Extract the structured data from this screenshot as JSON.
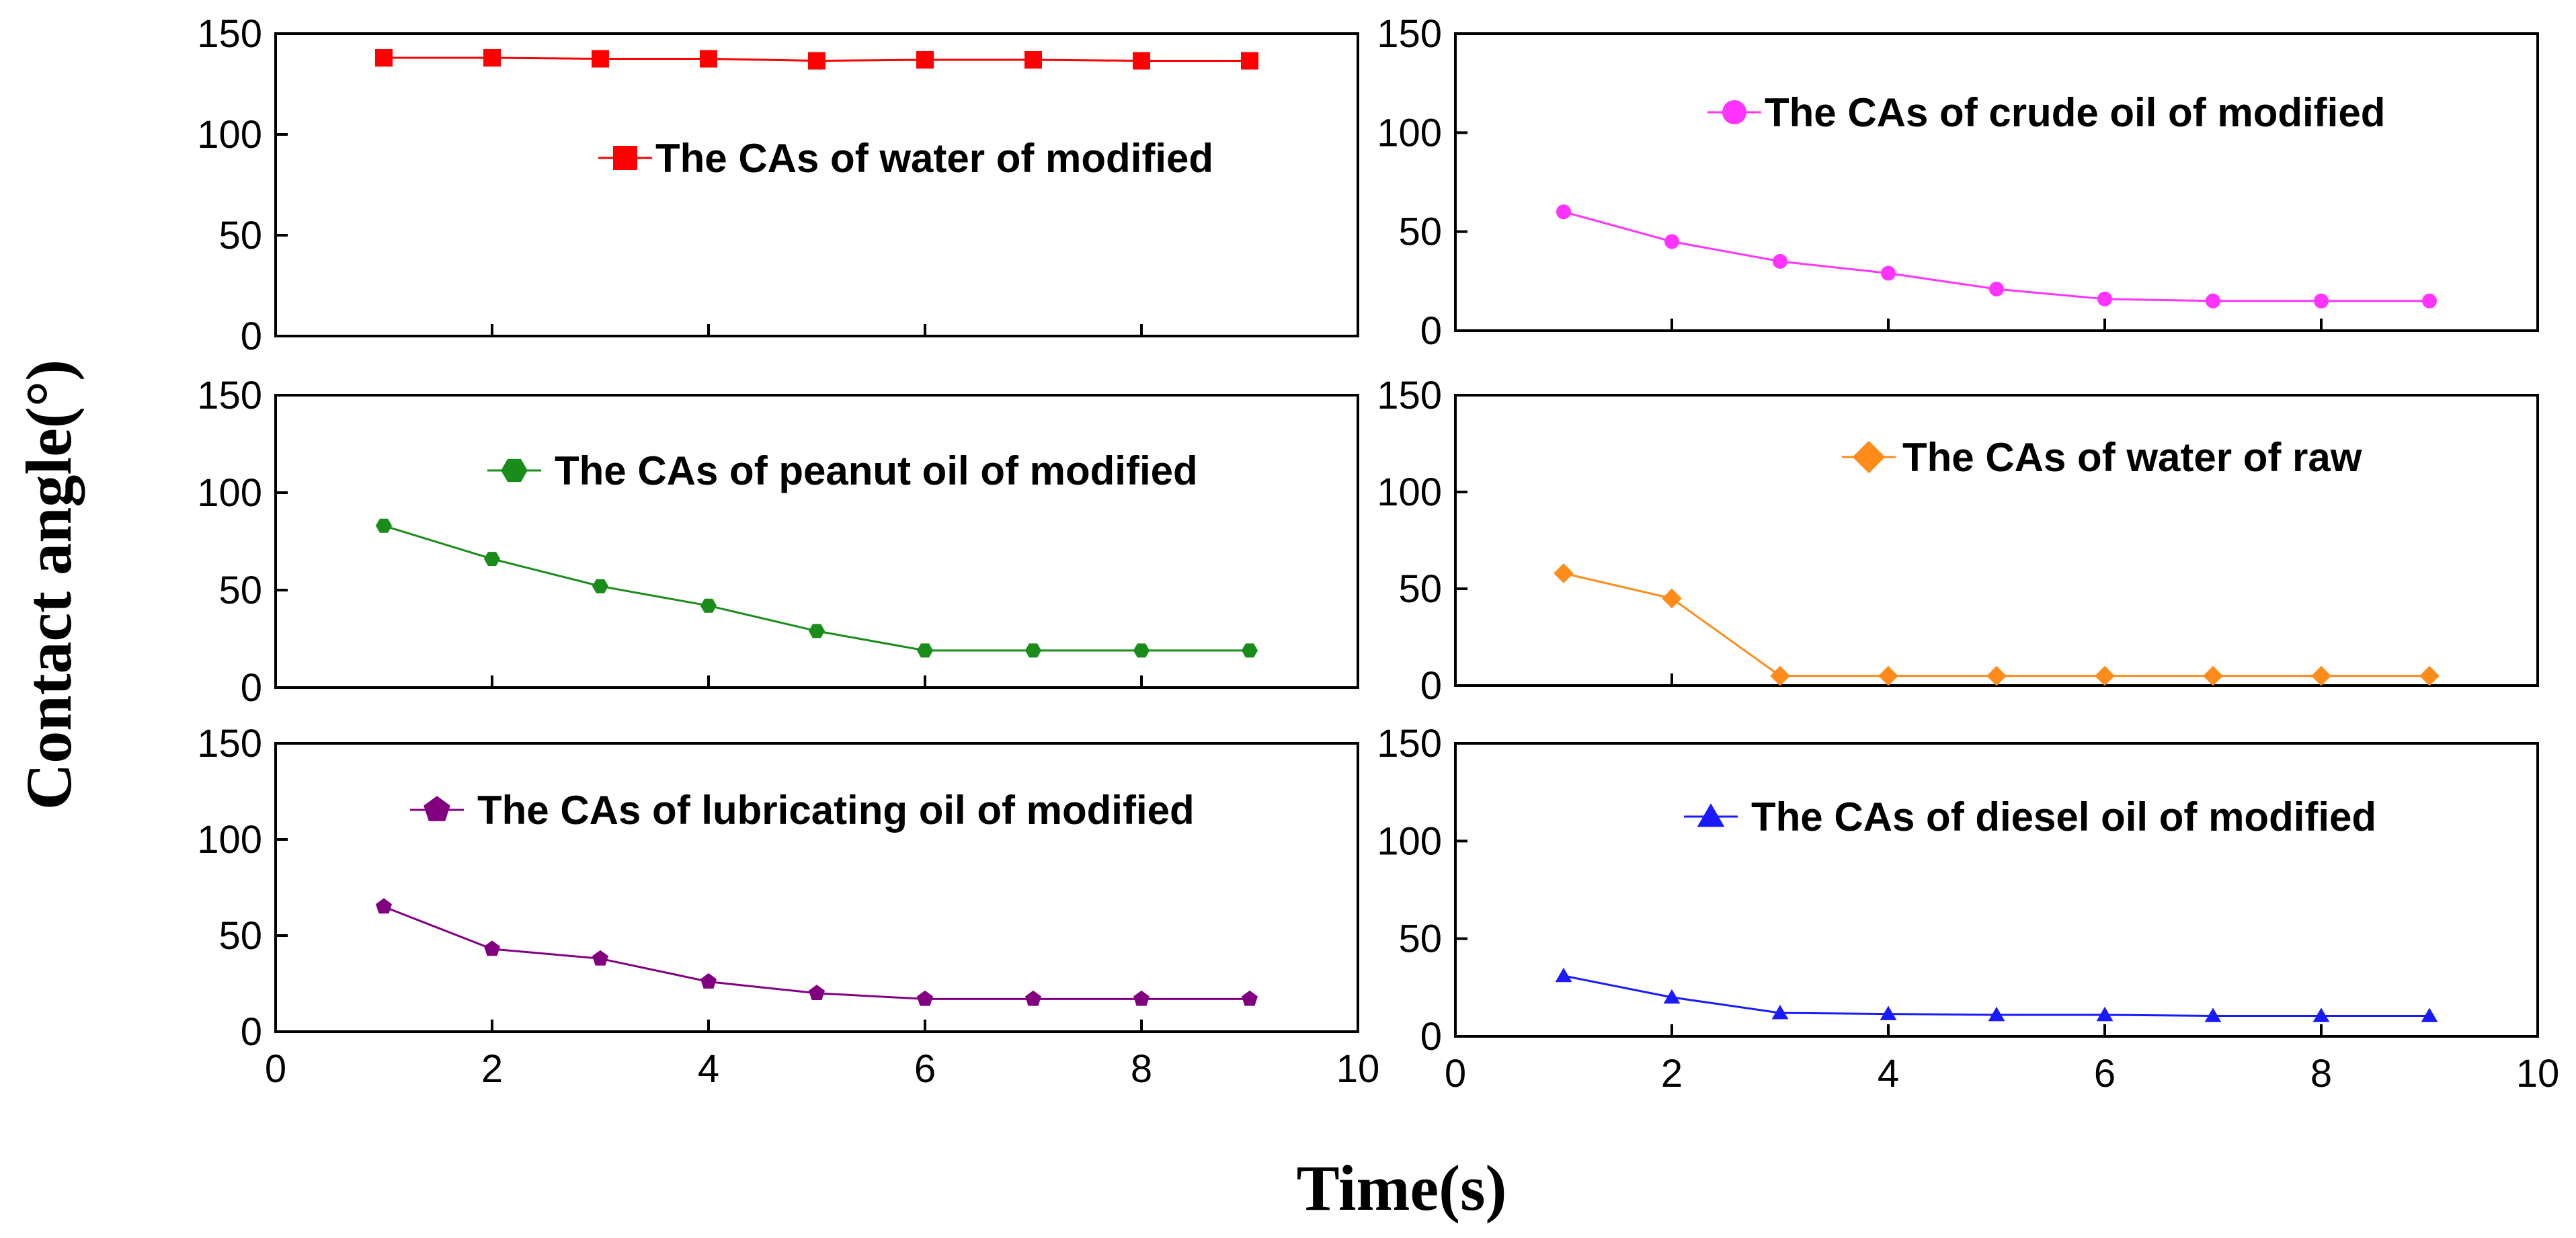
{
  "figure": {
    "ylabel": "Contact angle(°)",
    "xlabel": "Time(s)"
  },
  "chart_data": [
    {
      "type": "line",
      "legend": "The CAs of water of modified",
      "legend_position": "top-right",
      "color": "#ff0000",
      "marker": "square",
      "x": [
        1,
        2,
        3,
        4,
        5,
        6,
        7,
        8,
        9
      ],
      "y": [
        138,
        138,
        137.5,
        137.5,
        136.5,
        137,
        137,
        136.5,
        136.5
      ],
      "xlim": [
        0,
        10
      ],
      "ylim": [
        0,
        150
      ],
      "yticks": [
        "0",
        "50",
        "100",
        "150"
      ],
      "xticks": [
        "0",
        "2",
        "4",
        "6",
        "8",
        "10"
      ],
      "show_xticks": false
    },
    {
      "type": "line",
      "legend": "The CAs of crude oil of modified",
      "legend_position": "top-right",
      "color": "#ff33ff",
      "marker": "circle",
      "x": [
        1,
        2,
        3,
        4,
        5,
        6,
        7,
        8,
        9
      ],
      "y": [
        60,
        45,
        35,
        29,
        21,
        16,
        15,
        15,
        15
      ],
      "xlim": [
        0,
        10
      ],
      "ylim": [
        0,
        150
      ],
      "yticks": [
        "0",
        "50",
        "100",
        "150"
      ],
      "xticks": [
        "0",
        "2",
        "4",
        "6",
        "8",
        "10"
      ],
      "show_xticks": false
    },
    {
      "type": "line",
      "legend": "The CAs of peanut oil of modified",
      "legend_position": "top-right",
      "color": "#1a8c1a",
      "marker": "hexagon",
      "x": [
        1,
        2,
        3,
        4,
        5,
        6,
        7,
        8,
        9
      ],
      "y": [
        83,
        66,
        52,
        42,
        29,
        19,
        19,
        19,
        19
      ],
      "xlim": [
        0,
        10
      ],
      "ylim": [
        0,
        150
      ],
      "yticks": [
        "0",
        "50",
        "100",
        "150"
      ],
      "xticks": [
        "0",
        "2",
        "4",
        "6",
        "8",
        "10"
      ],
      "show_xticks": false
    },
    {
      "type": "line",
      "legend": "The CAs of  water of raw",
      "legend_position": "top-right",
      "color": "#ff8c1a",
      "marker": "diamond",
      "x": [
        1,
        2,
        3,
        4,
        5,
        6,
        7,
        8,
        9
      ],
      "y": [
        58,
        45,
        5,
        5,
        5,
        5,
        5,
        5,
        5
      ],
      "xlim": [
        0,
        10
      ],
      "ylim": [
        0,
        150
      ],
      "yticks": [
        "0",
        "50",
        "100",
        "150"
      ],
      "xticks": [
        "0",
        "2",
        "4",
        "6",
        "8",
        "10"
      ],
      "show_xticks": false
    },
    {
      "type": "line",
      "legend": "The CAs of lubricating oil of modified",
      "legend_position": "top-right",
      "color": "#800080",
      "marker": "pentagon",
      "x": [
        1,
        2,
        3,
        4,
        5,
        6,
        7,
        8,
        9
      ],
      "y": [
        65,
        43,
        38,
        26,
        20,
        17,
        17,
        17,
        17
      ],
      "xlim": [
        0,
        10
      ],
      "ylim": [
        0,
        150
      ],
      "yticks": [
        "0",
        "50",
        "100",
        "150"
      ],
      "xticks": [
        "0",
        "2",
        "4",
        "6",
        "8",
        "10"
      ],
      "show_xticks": true
    },
    {
      "type": "line",
      "legend": "The CAs of diesel oil of modified",
      "legend_position": "top-right",
      "color": "#1a1aff",
      "marker": "triangle",
      "x": [
        1,
        2,
        3,
        4,
        5,
        6,
        7,
        8,
        9
      ],
      "y": [
        31,
        20,
        12,
        11.5,
        11,
        11,
        10.5,
        10.5,
        10.5
      ],
      "xlim": [
        0,
        10
      ],
      "ylim": [
        0,
        150
      ],
      "yticks": [
        "0",
        "50",
        "100",
        "150"
      ],
      "xticks": [
        "0",
        "2",
        "4",
        "6",
        "8",
        "10"
      ],
      "show_xticks": true
    }
  ]
}
